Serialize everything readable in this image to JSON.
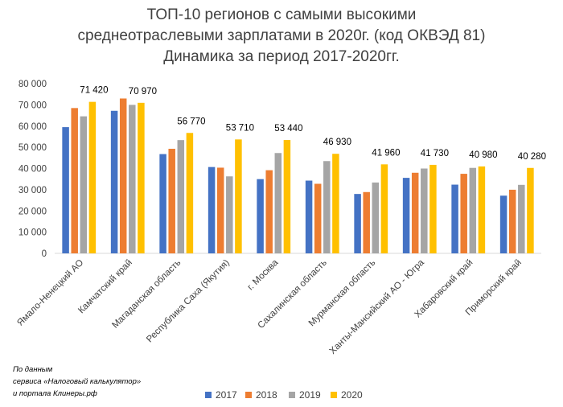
{
  "title_lines": [
    "ТОП-10 регионов с самыми высокими",
    "среднеотраслевыми зарплатами в 2020г. (код ОКВЭД 81)",
    "Динамика за период 2017-2020гг."
  ],
  "source_lines": [
    "По данным",
    "сервиса «Налоговый калькулятор»",
    "и портала Клинеры.рф"
  ],
  "colors": {
    "2017": "#4472C4",
    "2018": "#ED7D31",
    "2019": "#A5A5A5",
    "2020": "#FFC000"
  },
  "chart_data": {
    "type": "bar",
    "title": "ТОП-10 регионов с самыми высокими среднеотраслевыми зарплатами в 2020г. (код ОКВЭД 81) Динамика за период 2017-2020гг.",
    "xlabel": "",
    "ylabel": "",
    "ylim": [
      0,
      80000
    ],
    "yticks": [
      0,
      10000,
      20000,
      30000,
      40000,
      50000,
      60000,
      70000,
      80000
    ],
    "ytick_labels": [
      "0",
      "10 000",
      "20 000",
      "30 000",
      "40 000",
      "50 000",
      "60 000",
      "70 000",
      "80 000"
    ],
    "grid": false,
    "legend": "bottom",
    "categories": [
      "Ямало-Ненецкий АО",
      "Камчатский край",
      "Магаданская область",
      "Республика Саха (Якутия)",
      "г. Москва",
      "Сахалинская область",
      "Мурманская область",
      "Ханты-Мансийский АО - Югра",
      "Хабаровский край",
      "Приморский край"
    ],
    "series": [
      {
        "name": "2017",
        "values": [
          59500,
          67200,
          46800,
          40700,
          35000,
          34300,
          28000,
          35600,
          32400,
          27200
        ]
      },
      {
        "name": "2018",
        "values": [
          68500,
          73000,
          49300,
          40400,
          39200,
          32800,
          28900,
          38000,
          37500,
          30000
        ]
      },
      {
        "name": "2019",
        "values": [
          64600,
          70000,
          53400,
          36300,
          47300,
          43500,
          33400,
          40000,
          40300,
          32300
        ]
      },
      {
        "name": "2020",
        "values": [
          71420,
          70970,
          56770,
          53710,
          53440,
          46930,
          41960,
          41730,
          40980,
          40280
        ]
      }
    ],
    "data_labels": [
      "71 420",
      "70 970",
      "56 770",
      "53 710",
      "53 440",
      "46 930",
      "41 960",
      "41 730",
      "40 980",
      "40 280"
    ]
  }
}
